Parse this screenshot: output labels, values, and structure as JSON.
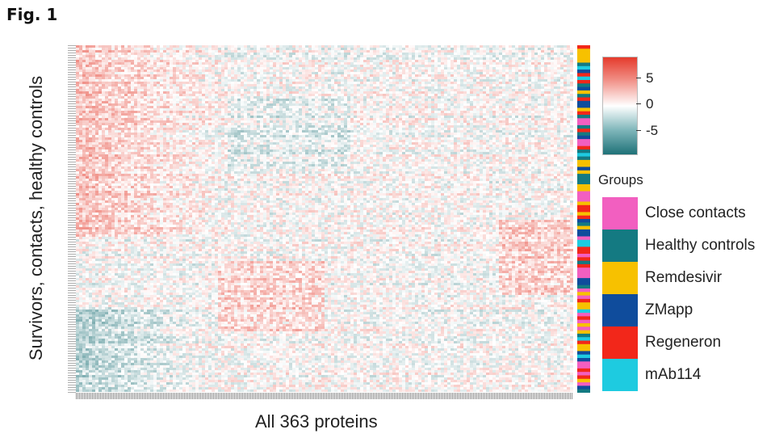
{
  "figure_label": "Fig. 1",
  "chart_data": {
    "type": "heatmap",
    "title": "",
    "xlabel": "All 363 proteins",
    "ylabel": "Survivors, contacts, healthy controls",
    "colorbar": {
      "ticks": [
        "5",
        "0",
        "-5"
      ],
      "tick_values": [
        5,
        0,
        -5
      ],
      "range": [
        -9,
        9
      ],
      "colors": {
        "high": "#e53b2c",
        "mid": "#ffffff",
        "low": "#1f7278"
      }
    },
    "legend": {
      "title": "Groups",
      "entries": [
        {
          "label": "Close contacts",
          "color": "#f25fc0"
        },
        {
          "label": "Healthy controls",
          "color": "#147a82"
        },
        {
          "label": "Remdesivir",
          "color": "#f7c100"
        },
        {
          "label": "ZMapp",
          "color": "#0f4c9c"
        },
        {
          "label": "Regeneron",
          "color": "#f2271a"
        },
        {
          "label": "mAb114",
          "color": "#1ecbe0"
        }
      ],
      "placement": "right"
    },
    "n_proteins": 363
  }
}
